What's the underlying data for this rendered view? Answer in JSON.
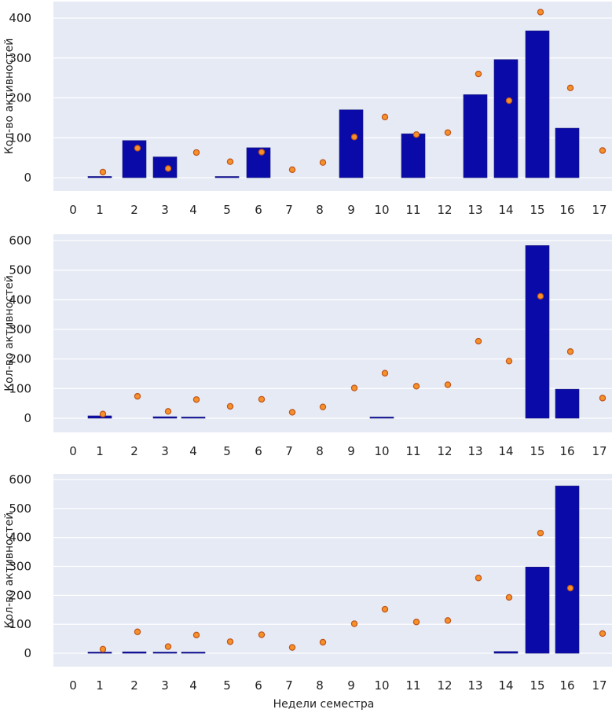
{
  "chart_data": [
    {
      "type": "bar",
      "title": "",
      "xlabel": "",
      "ylabel": "Кол-во активностей",
      "categories": [
        "0",
        "1",
        "2",
        "3",
        "4",
        "5",
        "6",
        "7",
        "8",
        "9",
        "10",
        "11",
        "12",
        "13",
        "14",
        "15",
        "16",
        "17"
      ],
      "ylim": [
        -30,
        440
      ],
      "yticks": [
        0,
        100,
        200,
        300,
        400
      ],
      "grid": true,
      "series": [
        {
          "name": "bars",
          "kind": "bar",
          "color": "#0a0aa8",
          "values": [
            0,
            3,
            93,
            52,
            0,
            2,
            75,
            0,
            0,
            170,
            0,
            110,
            0,
            208,
            296,
            368,
            124,
            0
          ]
        },
        {
          "name": "points",
          "kind": "scatter",
          "color": "#f5902a",
          "edge": "#c0541a",
          "values": [
            null,
            14,
            74,
            23,
            63,
            40,
            64,
            20,
            38,
            102,
            152,
            108,
            113,
            260,
            193,
            415,
            225,
            68
          ]
        }
      ]
    },
    {
      "type": "bar",
      "title": "",
      "xlabel": "",
      "ylabel": "Кол-во активностей",
      "categories": [
        "0",
        "1",
        "2",
        "3",
        "4",
        "5",
        "6",
        "7",
        "8",
        "9",
        "10",
        "11",
        "12",
        "13",
        "14",
        "15",
        "16",
        "17"
      ],
      "ylim": [
        -45,
        620
      ],
      "yticks": [
        0,
        100,
        200,
        300,
        400,
        500,
        600
      ],
      "grid": true,
      "series": [
        {
          "name": "bars",
          "kind": "bar",
          "color": "#0a0aa8",
          "values": [
            0,
            8,
            0,
            5,
            1,
            0,
            0,
            0,
            0,
            0,
            2,
            0,
            0,
            0,
            0,
            583,
            98,
            0
          ]
        },
        {
          "name": "points",
          "kind": "scatter",
          "color": "#f5902a",
          "edge": "#c0541a",
          "values": [
            null,
            14,
            74,
            23,
            63,
            40,
            64,
            20,
            38,
            102,
            152,
            108,
            113,
            260,
            193,
            412,
            225,
            68
          ]
        }
      ]
    },
    {
      "type": "bar",
      "title": "",
      "xlabel": "Недели семестра",
      "ylabel": "Кол-во активностей",
      "categories": [
        "0",
        "1",
        "2",
        "3",
        "4",
        "5",
        "6",
        "7",
        "8",
        "9",
        "10",
        "11",
        "12",
        "13",
        "14",
        "15",
        "16",
        "17"
      ],
      "ylim": [
        -45,
        620
      ],
      "yticks": [
        0,
        100,
        200,
        300,
        400,
        500,
        600
      ],
      "grid": true,
      "series": [
        {
          "name": "bars",
          "kind": "bar",
          "color": "#0a0aa8",
          "values": [
            0,
            2,
            5,
            4,
            3,
            0,
            0,
            0,
            0,
            0,
            0,
            0,
            0,
            0,
            6,
            298,
            578,
            0
          ]
        },
        {
          "name": "points",
          "kind": "scatter",
          "color": "#f5902a",
          "edge": "#c0541a",
          "values": [
            null,
            14,
            74,
            23,
            63,
            40,
            64,
            20,
            38,
            102,
            152,
            108,
            113,
            260,
            193,
            415,
            225,
            68
          ]
        }
      ]
    }
  ],
  "colors": {
    "plot_bg": "#e5eaf5",
    "grid": "#ffffff",
    "bar": "#0a0aa8",
    "point_fill": "#f5902a",
    "point_edge": "#c0541a"
  }
}
